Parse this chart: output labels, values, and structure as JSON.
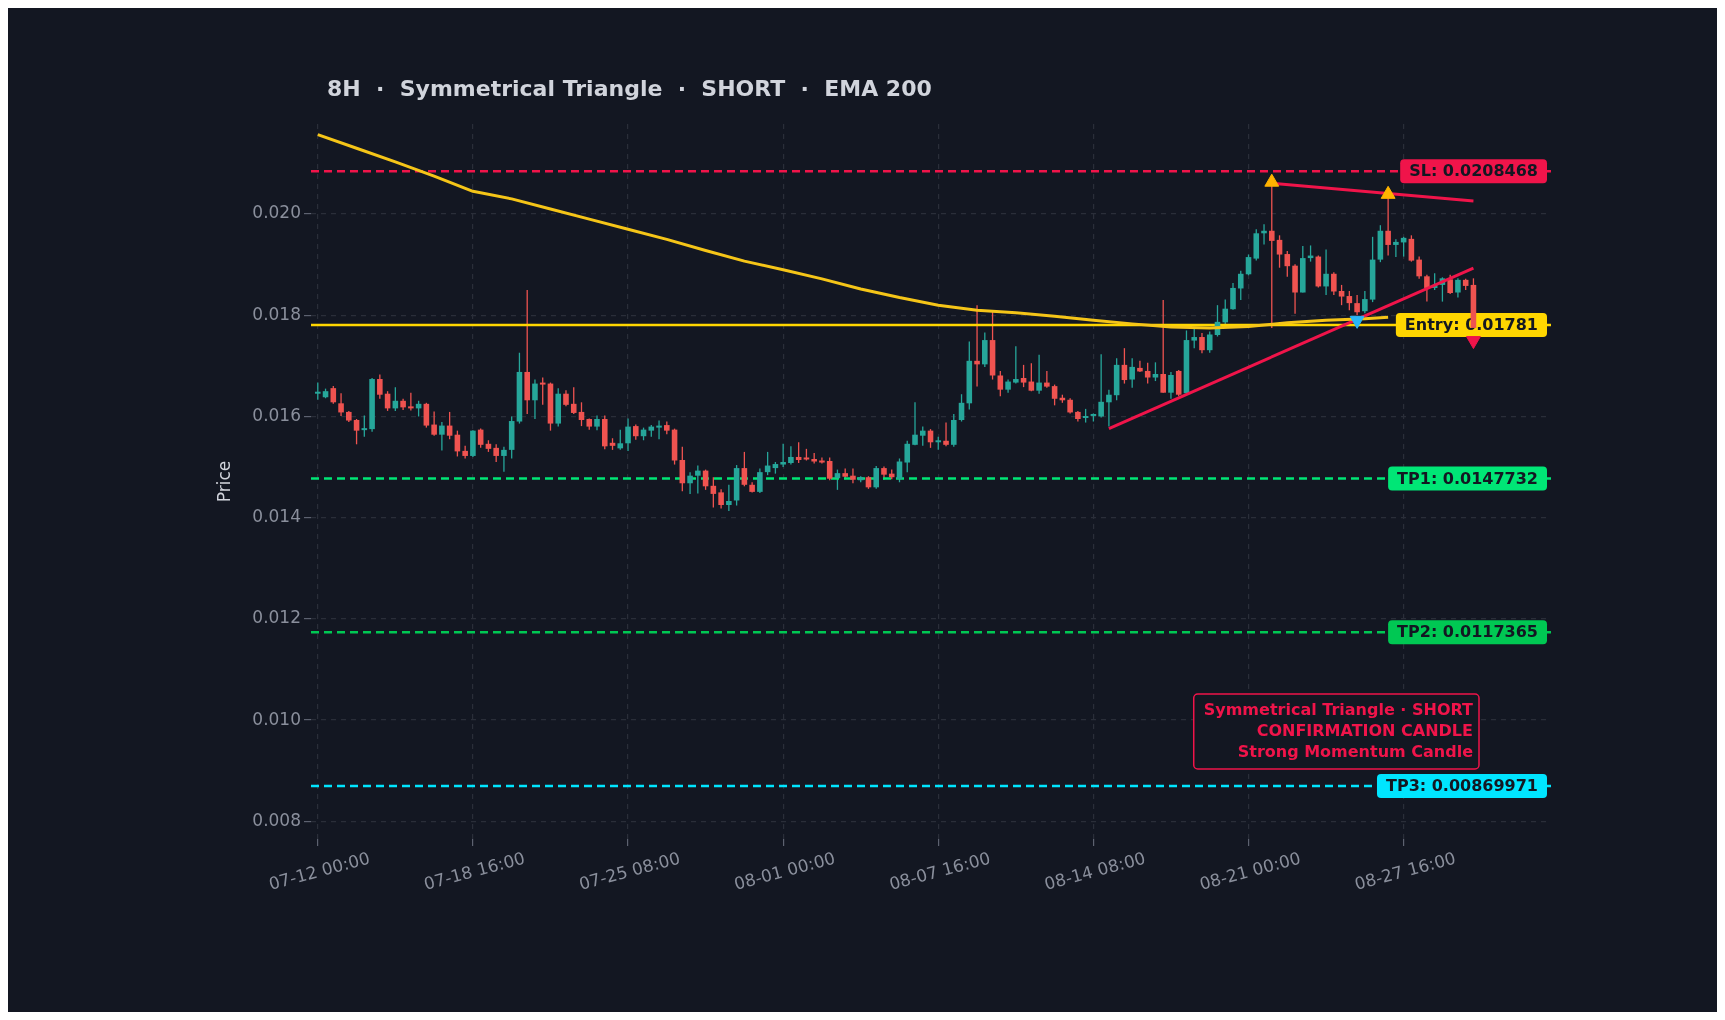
{
  "chart_data": {
    "type": "candlestick",
    "title": "8H  ·  Symmetrical Triangle  ·  SHORT  ·  EMA 200",
    "ylabel": "Price",
    "x": [
      "--07-12T00:00",
      "--07-12T08:00",
      "--07-12T16:00",
      "--07-13T00:00",
      "--07-13T08:00",
      "--07-13T16:00",
      "--07-14T00:00",
      "--07-14T08:00",
      "--07-14T16:00",
      "--07-15T00:00",
      "--07-15T08:00",
      "--07-15T16:00",
      "--07-16T00:00",
      "--07-16T08:00",
      "--07-16T16:00",
      "--07-17T00:00",
      "--07-17T08:00",
      "--07-17T16:00",
      "--07-18T00:00",
      "--07-18T08:00",
      "--07-18T16:00",
      "--07-19T00:00",
      "--07-19T08:00",
      "--07-19T16:00",
      "--07-20T00:00",
      "--07-20T08:00",
      "--07-20T16:00",
      "--07-21T00:00",
      "--07-21T08:00",
      "--07-21T16:00",
      "--07-22T00:00",
      "--07-22T08:00",
      "--07-22T16:00",
      "--07-23T00:00",
      "--07-23T08:00",
      "--07-23T16:00",
      "--07-24T00:00",
      "--07-24T08:00",
      "--07-24T16:00",
      "--07-25T00:00",
      "--07-25T08:00",
      "--07-25T16:00",
      "--07-26T00:00",
      "--07-26T08:00",
      "--07-26T16:00",
      "--07-27T00:00",
      "--07-27T08:00",
      "--07-27T16:00",
      "--07-28T00:00",
      "--07-28T08:00",
      "--07-28T16:00",
      "--07-29T00:00",
      "--07-29T08:00",
      "--07-29T16:00",
      "--07-30T00:00",
      "--07-30T08:00",
      "--07-30T16:00",
      "--07-31T00:00",
      "--07-31T08:00",
      "--07-31T16:00",
      "--08-01T00:00",
      "--08-01T08:00",
      "--08-01T16:00",
      "--08-02T00:00",
      "--08-02T08:00",
      "--08-02T16:00",
      "--08-03T00:00",
      "--08-03T08:00",
      "--08-03T16:00",
      "--08-04T00:00",
      "--08-04T08:00",
      "--08-04T16:00",
      "--08-05T00:00",
      "--08-05T08:00",
      "--08-05T16:00",
      "--08-06T00:00",
      "--08-06T08:00",
      "--08-06T16:00",
      "--08-07T00:00",
      "--08-07T08:00",
      "--08-07T16:00",
      "--08-08T00:00",
      "--08-08T08:00",
      "--08-08T16:00",
      "--08-09T00:00",
      "--08-09T08:00",
      "--08-09T16:00",
      "--08-10T00:00",
      "--08-10T08:00",
      "--08-10T16:00",
      "--08-11T00:00",
      "--08-11T08:00",
      "--08-11T16:00",
      "--08-12T00:00",
      "--08-12T08:00",
      "--08-12T16:00",
      "--08-13T00:00",
      "--08-13T08:00",
      "--08-13T16:00",
      "--08-14T00:00",
      "--08-14T08:00",
      "--08-14T16:00",
      "--08-15T00:00",
      "--08-15T08:00",
      "--08-15T16:00",
      "--08-16T00:00",
      "--08-16T08:00",
      "--08-16T16:00",
      "--08-17T00:00",
      "--08-17T08:00",
      "--08-17T16:00",
      "--08-18T00:00",
      "--08-18T08:00",
      "--08-18T16:00",
      "--08-19T00:00",
      "--08-19T08:00",
      "--08-19T16:00",
      "--08-20T00:00",
      "--08-20T08:00",
      "--08-20T16:00",
      "--08-21T00:00",
      "--08-21T08:00",
      "--08-21T16:00",
      "--08-22T00:00",
      "--08-22T08:00",
      "--08-22T16:00",
      "--08-23T00:00",
      "--08-23T08:00",
      "--08-23T16:00",
      "--08-24T00:00",
      "--08-24T08:00",
      "--08-24T16:00",
      "--08-25T00:00",
      "--08-25T08:00",
      "--08-25T16:00",
      "--08-26T00:00",
      "--08-26T08:00",
      "--08-26T16:00",
      "--08-27T00:00",
      "--08-27T08:00",
      "--08-27T16:00",
      "--08-28T00:00",
      "--08-28T08:00",
      "--08-28T16:00",
      "--08-29T00:00",
      "--08-29T08:00",
      "--08-29T16:00",
      "--08-30T00:00",
      "--08-30T08:00",
      "--08-30T16:00"
    ],
    "xlim": [
      "--07-11T17:00",
      "--09-03T00:00"
    ],
    "xticks": [
      {
        "value": "--07-12T00:00",
        "label": "07-12 00:00"
      },
      {
        "value": "--07-18T16:00",
        "label": "07-18 16:00"
      },
      {
        "value": "--07-25T08:00",
        "label": "07-25 08:00"
      },
      {
        "value": "--08-01T00:00",
        "label": "08-01 00:00"
      },
      {
        "value": "--08-07T16:00",
        "label": "08-07 16:00"
      },
      {
        "value": "--08-14T08:00",
        "label": "08-14 08:00"
      },
      {
        "value": "--08-21T00:00",
        "label": "08-21 00:00"
      },
      {
        "value": "--08-27T16:00",
        "label": "08-27 16:00"
      }
    ],
    "ylim": [
      0.00765,
      0.02178
    ],
    "yticks": [
      0.008,
      {
        "value": 0.01,
        "label": "0.010"
      },
      0.012,
      0.014,
      0.016,
      0.018,
      {
        "value": 0.02,
        "label": "0.020"
      }
    ],
    "grid": true,
    "legend": false,
    "ohlc": [
      [
        0.01645,
        0.01667,
        0.01633,
        0.01648
      ],
      [
        0.01638,
        0.01655,
        0.01636,
        0.0165
      ],
      [
        0.01656,
        0.0166,
        0.01625,
        0.01628
      ],
      [
        0.01626,
        0.01646,
        0.01601,
        0.01608
      ],
      [
        0.01609,
        0.01611,
        0.01589,
        0.01592
      ],
      [
        0.01593,
        0.01595,
        0.01545,
        0.01572
      ],
      [
        0.01573,
        0.01602,
        0.0156,
        0.01576
      ],
      [
        0.01575,
        0.01676,
        0.0157,
        0.01674
      ],
      [
        0.01674,
        0.01683,
        0.01635,
        0.01643
      ],
      [
        0.01645,
        0.0165,
        0.01611,
        0.01616
      ],
      [
        0.01616,
        0.01658,
        0.01611,
        0.01631
      ],
      [
        0.01631,
        0.01635,
        0.01613,
        0.01618
      ],
      [
        0.01619,
        0.01647,
        0.01612,
        0.01616
      ],
      [
        0.01616,
        0.01631,
        0.016,
        0.01625
      ],
      [
        0.01625,
        0.01627,
        0.01578,
        0.01582
      ],
      [
        0.01584,
        0.0161,
        0.01562,
        0.01564
      ],
      [
        0.01564,
        0.01589,
        0.01533,
        0.01582
      ],
      [
        0.01582,
        0.01609,
        0.01555,
        0.01562
      ],
      [
        0.01564,
        0.01572,
        0.01521,
        0.01531
      ],
      [
        0.01532,
        0.01542,
        0.01517,
        0.01522
      ],
      [
        0.01522,
        0.01573,
        0.0152,
        0.01572
      ],
      [
        0.01574,
        0.01576,
        0.01538,
        0.01544
      ],
      [
        0.01546,
        0.01553,
        0.0153,
        0.01536
      ],
      [
        0.01538,
        0.01545,
        0.0151,
        0.01522
      ],
      [
        0.01522,
        0.0154,
        0.01491,
        0.01534
      ],
      [
        0.01534,
        0.016,
        0.01517,
        0.01591
      ],
      [
        0.0159,
        0.01726,
        0.01586,
        0.01688
      ],
      [
        0.01688,
        0.0185,
        0.01605,
        0.01632
      ],
      [
        0.01632,
        0.01673,
        0.01595,
        0.01665
      ],
      [
        0.01664,
        0.01677,
        0.01623,
        0.01663
      ],
      [
        0.01665,
        0.01667,
        0.01572,
        0.01586
      ],
      [
        0.01586,
        0.01656,
        0.0158,
        0.01645
      ],
      [
        0.01645,
        0.01652,
        0.0162,
        0.01623
      ],
      [
        0.01625,
        0.01658,
        0.01605,
        0.01607
      ],
      [
        0.01609,
        0.01628,
        0.01581,
        0.01593
      ],
      [
        0.01595,
        0.01596,
        0.01574,
        0.0158
      ],
      [
        0.0158,
        0.01602,
        0.01573,
        0.01595
      ],
      [
        0.01595,
        0.01602,
        0.01535,
        0.01541
      ],
      [
        0.01548,
        0.01557,
        0.01534,
        0.01542
      ],
      [
        0.01537,
        0.01574,
        0.01534,
        0.01547
      ],
      [
        0.01547,
        0.01596,
        0.01532,
        0.0158
      ],
      [
        0.01581,
        0.01584,
        0.01554,
        0.01561
      ],
      [
        0.01561,
        0.01578,
        0.01553,
        0.01574
      ],
      [
        0.01572,
        0.01583,
        0.0156,
        0.0158
      ],
      [
        0.01578,
        0.01592,
        0.01555,
        0.01581
      ],
      [
        0.01583,
        0.0159,
        0.01565,
        0.01572
      ],
      [
        0.01574,
        0.01576,
        0.01505,
        0.01513
      ],
      [
        0.01514,
        0.0154,
        0.01452,
        0.01468
      ],
      [
        0.01468,
        0.0149,
        0.01447,
        0.01483
      ],
      [
        0.01483,
        0.01503,
        0.01448,
        0.01493
      ],
      [
        0.01493,
        0.01495,
        0.01455,
        0.01462
      ],
      [
        0.01463,
        0.0148,
        0.0142,
        0.01447
      ],
      [
        0.0145,
        0.01456,
        0.01418,
        0.01425
      ],
      [
        0.01425,
        0.01465,
        0.01413,
        0.01433
      ],
      [
        0.01434,
        0.01504,
        0.01424,
        0.01498
      ],
      [
        0.01498,
        0.0153,
        0.01462,
        0.01465
      ],
      [
        0.01465,
        0.0147,
        0.0145,
        0.01451
      ],
      [
        0.01451,
        0.01497,
        0.01449,
        0.0149
      ],
      [
        0.0149,
        0.0153,
        0.01484,
        0.01503
      ],
      [
        0.01498,
        0.0151,
        0.01487,
        0.01506
      ],
      [
        0.01505,
        0.01546,
        0.015,
        0.0151
      ],
      [
        0.01508,
        0.01541,
        0.01505,
        0.0152
      ],
      [
        0.0152,
        0.01549,
        0.01508,
        0.01514
      ],
      [
        0.01517,
        0.01536,
        0.01513,
        0.01515
      ],
      [
        0.01516,
        0.01528,
        0.01507,
        0.01511
      ],
      [
        0.01512,
        0.01519,
        0.01507,
        0.01509
      ],
      [
        0.01512,
        0.01519,
        0.01474,
        0.01477
      ],
      [
        0.01478,
        0.01495,
        0.01455,
        0.01488
      ],
      [
        0.01488,
        0.01497,
        0.01476,
        0.01481
      ],
      [
        0.01483,
        0.01497,
        0.01468,
        0.01475
      ],
      [
        0.01474,
        0.01482,
        0.0147,
        0.0148
      ],
      [
        0.0148,
        0.01482,
        0.01457,
        0.0146
      ],
      [
        0.0146,
        0.01502,
        0.01457,
        0.01498
      ],
      [
        0.01498,
        0.01501,
        0.01475,
        0.01485
      ],
      [
        0.01487,
        0.01495,
        0.01476,
        0.0148
      ],
      [
        0.01476,
        0.01517,
        0.0147,
        0.01511
      ],
      [
        0.01509,
        0.01552,
        0.0149,
        0.01546
      ],
      [
        0.01544,
        0.01628,
        0.01543,
        0.01564
      ],
      [
        0.01562,
        0.0158,
        0.01542,
        0.01572
      ],
      [
        0.01572,
        0.01575,
        0.01538,
        0.01549
      ],
      [
        0.01549,
        0.0156,
        0.01534,
        0.01552
      ],
      [
        0.01552,
        0.01588,
        0.01541,
        0.01544
      ],
      [
        0.01544,
        0.01605,
        0.0154,
        0.01593
      ],
      [
        0.01593,
        0.01644,
        0.0159,
        0.01627
      ],
      [
        0.01626,
        0.01748,
        0.01614,
        0.0171
      ],
      [
        0.0171,
        0.0182,
        0.01659,
        0.01703
      ],
      [
        0.01703,
        0.01766,
        0.01698,
        0.01751
      ],
      [
        0.01751,
        0.0181,
        0.01673,
        0.01681
      ],
      [
        0.01681,
        0.0169,
        0.0164,
        0.01653
      ],
      [
        0.01653,
        0.01673,
        0.01647,
        0.01669
      ],
      [
        0.01667,
        0.01739,
        0.01665,
        0.01674
      ],
      [
        0.01676,
        0.01702,
        0.01658,
        0.01667
      ],
      [
        0.01669,
        0.01705,
        0.0165,
        0.01651
      ],
      [
        0.01651,
        0.01722,
        0.01645,
        0.01667
      ],
      [
        0.01667,
        0.0169,
        0.01657,
        0.01659
      ],
      [
        0.0166,
        0.01663,
        0.01622,
        0.01635
      ],
      [
        0.01637,
        0.01643,
        0.01627,
        0.01632
      ],
      [
        0.01633,
        0.01636,
        0.01606,
        0.01608
      ],
      [
        0.01609,
        0.01611,
        0.0159,
        0.01595
      ],
      [
        0.01597,
        0.01615,
        0.01588,
        0.01599
      ],
      [
        0.01601,
        0.01606,
        0.0159,
        0.01602
      ],
      [
        0.016,
        0.01723,
        0.01598,
        0.01629
      ],
      [
        0.01628,
        0.01653,
        0.0158,
        0.01643
      ],
      [
        0.01642,
        0.01715,
        0.01632,
        0.01702
      ],
      [
        0.01702,
        0.01735,
        0.01665,
        0.01672
      ],
      [
        0.01673,
        0.01715,
        0.01657,
        0.01698
      ],
      [
        0.01696,
        0.0171,
        0.01688,
        0.01689
      ],
      [
        0.0169,
        0.01706,
        0.01665,
        0.01677
      ],
      [
        0.01677,
        0.01707,
        0.0167,
        0.01684
      ],
      [
        0.01684,
        0.0183,
        0.01647,
        0.01647
      ],
      [
        0.01647,
        0.01688,
        0.01635,
        0.01682
      ],
      [
        0.0169,
        0.01692,
        0.0164,
        0.01643
      ],
      [
        0.01646,
        0.0177,
        0.01643,
        0.01751
      ],
      [
        0.0175,
        0.01777,
        0.01735,
        0.01757
      ],
      [
        0.01757,
        0.01765,
        0.01725,
        0.01731
      ],
      [
        0.01731,
        0.01768,
        0.01726,
        0.01762
      ],
      [
        0.01761,
        0.0182,
        0.01758,
        0.01787
      ],
      [
        0.01786,
        0.01831,
        0.01783,
        0.01813
      ],
      [
        0.01812,
        0.01864,
        0.01811,
        0.01854
      ],
      [
        0.01853,
        0.01888,
        0.0183,
        0.01882
      ],
      [
        0.01881,
        0.0192,
        0.01879,
        0.01915
      ],
      [
        0.01912,
        0.0197,
        0.01908,
        0.01962
      ],
      [
        0.01962,
        0.0198,
        0.0194,
        0.01967
      ],
      [
        0.01967,
        0.0206,
        0.01775,
        0.01947
      ],
      [
        0.01949,
        0.01958,
        0.01894,
        0.0192
      ],
      [
        0.01921,
        0.01927,
        0.01876,
        0.01897
      ],
      [
        0.01898,
        0.01901,
        0.01803,
        0.01845
      ],
      [
        0.01845,
        0.01937,
        0.01845,
        0.01913
      ],
      [
        0.01913,
        0.01938,
        0.01906,
        0.01918
      ],
      [
        0.01916,
        0.01918,
        0.01855,
        0.01857
      ],
      [
        0.01857,
        0.0193,
        0.0184,
        0.01882
      ],
      [
        0.01882,
        0.01885,
        0.0184,
        0.01847
      ],
      [
        0.01848,
        0.0186,
        0.0182,
        0.01837
      ],
      [
        0.01838,
        0.01848,
        0.0181,
        0.01824
      ],
      [
        0.01824,
        0.0184,
        0.018,
        0.01806
      ],
      [
        0.01808,
        0.01848,
        0.01804,
        0.01832
      ],
      [
        0.01831,
        0.01955,
        0.01826,
        0.0191
      ],
      [
        0.0191,
        0.01978,
        0.01905,
        0.01967
      ],
      [
        0.01967,
        0.02035,
        0.01918,
        0.01939
      ],
      [
        0.01939,
        0.0195,
        0.01915,
        0.01945
      ],
      [
        0.01944,
        0.01955,
        0.01916,
        0.01953
      ],
      [
        0.01951,
        0.01958,
        0.01906,
        0.01908
      ],
      [
        0.0191,
        0.01916,
        0.01872,
        0.01877
      ],
      [
        0.01877,
        0.0188,
        0.01827,
        0.01854
      ],
      [
        0.01854,
        0.01883,
        0.0185,
        0.0186
      ],
      [
        0.0186,
        0.01875,
        0.01827,
        0.01873
      ],
      [
        0.01871,
        0.0188,
        0.01842,
        0.01844
      ],
      [
        0.01845,
        0.01873,
        0.01835,
        0.0187
      ],
      [
        0.0187,
        0.01872,
        0.0185,
        0.01858
      ],
      [
        0.0186,
        0.01873,
        0.01772,
        0.01775
      ]
    ],
    "series": [
      {
        "type": "line",
        "color": "#f5c518",
        "marker": "none",
        "line_style": "solid",
        "x": [
          "--07-12T00:00",
          "--07-13T16:00",
          "--07-15T08:00",
          "--07-17T00:00",
          "--07-18T16:00",
          "--07-20T08:00",
          "--07-22T00:00",
          "--07-23T16:00",
          "--07-25T08:00",
          "--07-27T00:00",
          "--07-28T16:00",
          "--07-30T08:00",
          "--08-01T00:00",
          "--08-02T16:00",
          "--08-04T08:00",
          "--08-06T00:00",
          "--08-07T16:00",
          "--08-09T08:00",
          "--08-11T00:00",
          "--08-12T16:00",
          "--08-14T08:00",
          "--08-16T00:00",
          "--08-17T16:00",
          "--08-19T08:00",
          "--08-21T00:00",
          "--08-22T16:00",
          "--08-24T08:00",
          "--08-26T00:00",
          "--08-27T00:00"
        ],
        "values": [
          0.02157,
          0.0213,
          0.02103,
          0.02075,
          0.02045,
          0.0203,
          0.0201,
          0.0199,
          0.0197,
          0.0195,
          0.01928,
          0.01907,
          0.0189,
          0.01872,
          0.01852,
          0.01835,
          0.0182,
          0.0181,
          0.01805,
          0.01798,
          0.0179,
          0.01783,
          0.01777,
          0.01775,
          0.01778,
          0.01785,
          0.0179,
          0.01793,
          0.01796
        ]
      },
      {
        "type": "line",
        "color": "#f0144a",
        "marker": "none",
        "line_style": "solid",
        "x": [
          "--08-15T00:00",
          "--08-30T16:00"
        ],
        "values": [
          0.01576,
          0.01893
        ]
      },
      {
        "type": "line",
        "color": "#f0144a",
        "marker": "none",
        "line_style": "solid",
        "x": [
          "--08-22T00:00",
          "--08-30T16:00"
        ],
        "values": [
          0.02061,
          0.02026
        ]
      },
      {
        "type": "scatter",
        "color": "#ffb300",
        "marker": "triangle",
        "x": [
          "--08-22T00:00",
          "--08-27T00:00"
        ],
        "values": [
          0.02063,
          0.02039
        ]
      },
      {
        "type": "scatter",
        "color": "#29b6f6",
        "marker": "triangle-down",
        "x": [
          "--08-25T16:00"
        ],
        "values": [
          0.0179
        ]
      },
      {
        "type": "scatter",
        "color": "#f0144a",
        "marker": "triangle-down",
        "x": [
          "--08-30T16:00"
        ],
        "values": [
          0.0175
        ]
      }
    ],
    "ref_lines": [
      {
        "axis": "y",
        "value": 0.0208468,
        "label": "SL: 0.0208468",
        "color": "#f0144a",
        "line_style": "dashed"
      },
      {
        "axis": "y",
        "value": 0.01781,
        "label": "Entry: 0.01781",
        "color": "#ffd600",
        "line_style": "solid"
      },
      {
        "axis": "y",
        "value": 0.0147732,
        "label": "TP1: 0.0147732",
        "color": "#00e676",
        "line_style": "dashed"
      },
      {
        "axis": "y",
        "value": 0.0117365,
        "label": "TP2: 0.0117365",
        "color": "#00c853",
        "line_style": "dashed"
      },
      {
        "axis": "y",
        "value": 0.00869971,
        "label": "TP3: 0.00869971",
        "color": "#00e5ff",
        "line_style": "dashed"
      }
    ],
    "annotations": [
      "Symmetrical Triangle · SHORT",
      "CONFIRMATION CANDLE",
      "Strong Momentum Candle"
    ]
  }
}
